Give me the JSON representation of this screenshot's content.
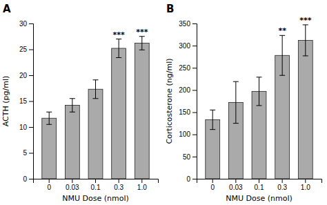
{
  "chart_data": [
    {
      "type": "bar",
      "title": "A",
      "categories": [
        "0",
        "0.03",
        "0.1",
        "0.3",
        "1.0"
      ],
      "values": [
        11.7,
        14.2,
        17.3,
        25.2,
        26.2
      ],
      "errors": [
        1.2,
        1.3,
        1.8,
        1.8,
        1.3
      ],
      "annotations": [
        null,
        null,
        null,
        "***",
        "***"
      ],
      "x_label": "NMU Dose (nmol)",
      "y_label": "ACTH (pg/ml)",
      "ylim": [
        0,
        30
      ],
      "yticks": [
        0,
        5,
        10,
        15,
        20,
        25,
        30
      ],
      "color": "#aaaaaa",
      "grid": false
    },
    {
      "type": "bar",
      "title": "B",
      "categories": [
        "0",
        "0.03",
        "0.1",
        "0.3",
        "1.0"
      ],
      "values": [
        133,
        172,
        197,
        278,
        312
      ],
      "errors": [
        22,
        47,
        32,
        45,
        35
      ],
      "annotations": [
        null,
        null,
        null,
        "**",
        "***"
      ],
      "x_label": "NMU Dose (nmol)",
      "y_label": "Corticosterone (ng/ml)",
      "ylim": [
        0,
        350
      ],
      "yticks": [
        0,
        50,
        100,
        150,
        200,
        250,
        300,
        350
      ],
      "color": "#aaaaaa",
      "grid": false
    }
  ]
}
